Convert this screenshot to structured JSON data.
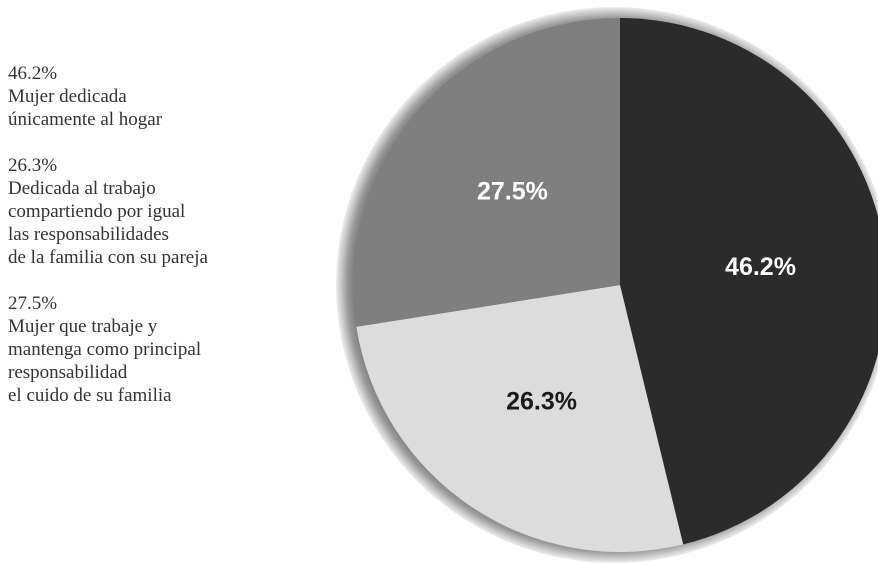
{
  "chart_data": {
    "type": "pie",
    "categories": [
      "Mujer dedicada\núnicamente al hogar",
      "Dedicada al trabajo\ncompartiendo por igual\nlas responsabilidades\nde la familia con su pareja",
      "Mujer que trabaje y\nmantenga como principal\nresponsabilidad\nel cuido de su familia"
    ],
    "values": [
      46.2,
      26.3,
      27.5
    ],
    "value_labels": [
      "46.2%",
      "26.3%",
      "27.5%"
    ],
    "colors": [
      "#2b2b2b",
      "#dcdcdc",
      "#7f7f7f"
    ],
    "label_colors": [
      "#ffffff",
      "#1a1a1a",
      "#ffffff"
    ]
  }
}
